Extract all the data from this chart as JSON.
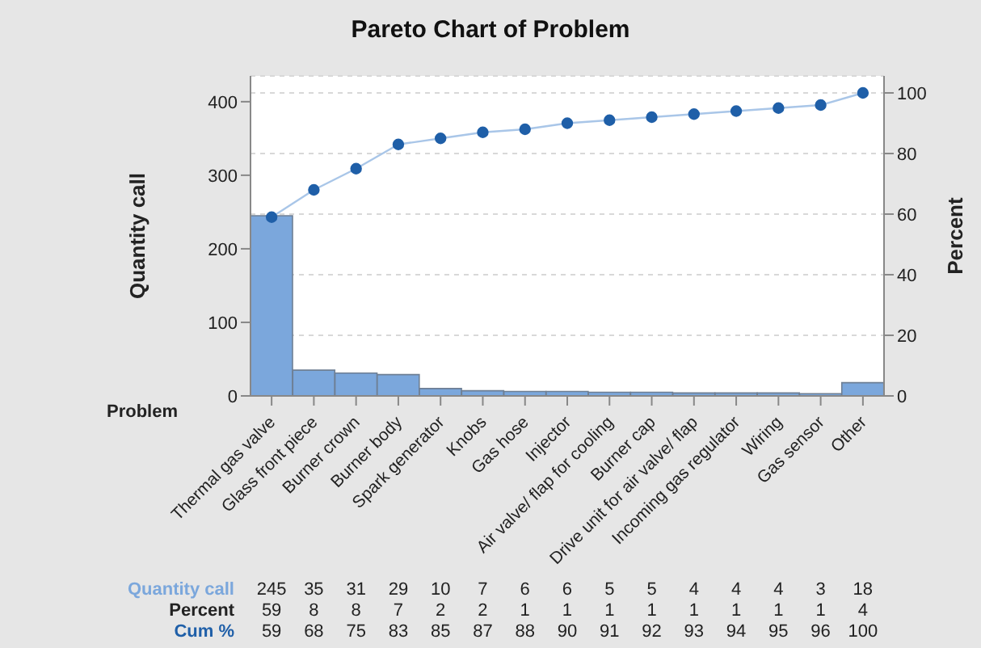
{
  "chart_data": {
    "type": "bar",
    "title": "Pareto Chart of Problem",
    "xlabel": "Problem",
    "ylabel": "Quantity call",
    "y2label": "Percent",
    "categories": [
      "Thermal gas valve",
      "Glass front piece",
      "Burner crown",
      "Burner body",
      "Spark generator",
      "Knobs",
      "Gas hose",
      "Injector",
      "Air valve/ flap for cooling",
      "Burner cap",
      "Drive unit for air valve/ flap",
      "Incoming gas regulator",
      "Wiring",
      "Gas sensor",
      "Other"
    ],
    "series": [
      {
        "name": "Quantity call",
        "color": "#7ba7dc",
        "values": [
          245,
          35,
          31,
          29,
          10,
          7,
          6,
          6,
          5,
          5,
          4,
          4,
          4,
          3,
          18
        ]
      },
      {
        "name": "Cum %",
        "type": "line",
        "axis": "y2",
        "color": "#1f5fa8",
        "values": [
          59,
          68,
          75,
          83,
          85,
          87,
          88,
          90,
          91,
          92,
          93,
          94,
          95,
          96,
          100
        ]
      }
    ],
    "annotations": [
      "Percent",
      "59",
      "8",
      "8",
      "7",
      "2",
      "2",
      "1",
      "1",
      "1",
      "1",
      "1",
      "1",
      "1",
      "1",
      "4"
    ],
    "ylim": [
      0,
      435
    ],
    "yticks": [
      0,
      100,
      200,
      300,
      400
    ],
    "y2lim": [
      0,
      105.6
    ],
    "y2ticks": [
      0,
      20,
      40,
      60,
      80,
      100
    ],
    "grid": "y",
    "marker": "circle",
    "line_style": "solid",
    "data_labels": true
  }
}
